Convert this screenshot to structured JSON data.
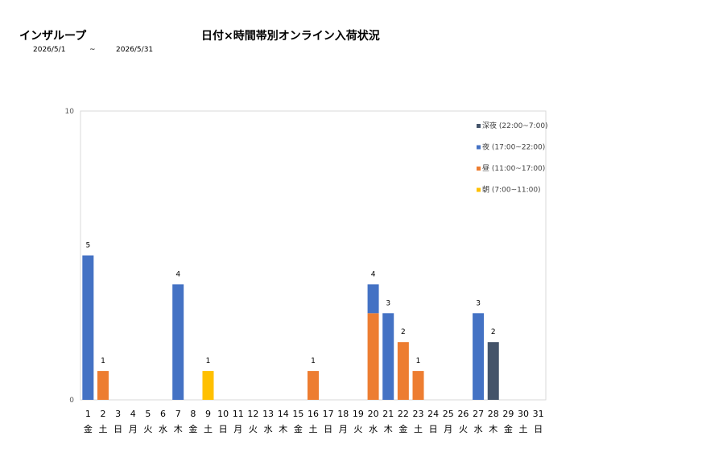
{
  "header": {
    "company": "インザループ",
    "title": "日付×時間帯別オンライン入荷状況",
    "date_from": "2026/5/1",
    "date_sep": "~",
    "date_to": "2026/5/31"
  },
  "chart_data": {
    "type": "bar",
    "stacked": true,
    "title": "日付×時間帯別オンライン入荷状況",
    "xlabel": "",
    "ylabel": "",
    "ylim": [
      0,
      10
    ],
    "yticks": [
      0,
      10
    ],
    "grid": false,
    "legend_position": "top-right",
    "categories": [
      "1",
      "2",
      "3",
      "4",
      "5",
      "6",
      "7",
      "8",
      "9",
      "10",
      "11",
      "12",
      "13",
      "14",
      "15",
      "16",
      "17",
      "18",
      "19",
      "20",
      "21",
      "22",
      "23",
      "24",
      "25",
      "26",
      "27",
      "28",
      "29",
      "30",
      "31"
    ],
    "weekdays": [
      "金",
      "土",
      "日",
      "月",
      "火",
      "水",
      "木",
      "金",
      "土",
      "日",
      "月",
      "火",
      "水",
      "木",
      "金",
      "土",
      "日",
      "月",
      "火",
      "水",
      "木",
      "金",
      "土",
      "日",
      "月",
      "火",
      "水",
      "木",
      "金",
      "土",
      "日"
    ],
    "series": [
      {
        "name": "朝 (7:00~11:00)",
        "color": "#FFC000",
        "values": [
          0,
          0,
          0,
          0,
          0,
          0,
          0,
          0,
          1,
          0,
          0,
          0,
          0,
          0,
          0,
          0,
          0,
          0,
          0,
          0,
          0,
          0,
          0,
          0,
          0,
          0,
          0,
          0,
          0,
          0,
          0
        ]
      },
      {
        "name": "昼 (11:00~17:00)",
        "color": "#ED7D31",
        "values": [
          0,
          1,
          0,
          0,
          0,
          0,
          0,
          0,
          0,
          0,
          0,
          0,
          0,
          0,
          0,
          1,
          0,
          0,
          0,
          3,
          0,
          2,
          1,
          0,
          0,
          0,
          0,
          0,
          0,
          0,
          0
        ]
      },
      {
        "name": "夜 (17:00~22:00)",
        "color": "#4472C4",
        "values": [
          5,
          0,
          0,
          0,
          0,
          0,
          4,
          0,
          0,
          0,
          0,
          0,
          0,
          0,
          0,
          0,
          0,
          0,
          0,
          1,
          3,
          0,
          0,
          0,
          0,
          0,
          3,
          0,
          0,
          0,
          0
        ]
      },
      {
        "name": "深夜 (22:00~7:00)",
        "color": "#44546A",
        "values": [
          0,
          0,
          0,
          0,
          0,
          0,
          0,
          0,
          0,
          0,
          0,
          0,
          0,
          0,
          0,
          0,
          0,
          0,
          0,
          0,
          0,
          0,
          0,
          0,
          0,
          0,
          0,
          2,
          0,
          0,
          0
        ]
      }
    ],
    "totals": [
      5,
      1,
      0,
      0,
      0,
      0,
      4,
      0,
      1,
      0,
      0,
      0,
      0,
      0,
      0,
      1,
      0,
      0,
      0,
      4,
      3,
      2,
      1,
      0,
      0,
      0,
      3,
      2,
      0,
      0,
      0
    ],
    "legend_order": [
      "深夜 (22:00~7:00)",
      "夜 (17:00~22:00)",
      "昼 (11:00~17:00)",
      "朝 (7:00~11:00)"
    ]
  }
}
